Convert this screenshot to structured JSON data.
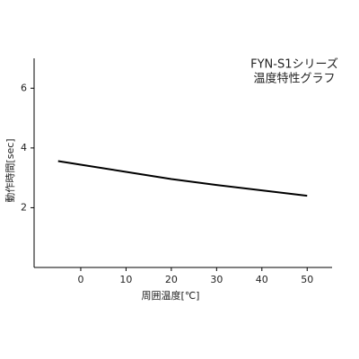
{
  "chart_data": {
    "type": "line",
    "title": "FYN-S1シリーズ",
    "subtitle": "温度特性グラフ",
    "x_label": "周囲温度[℃]",
    "y_label": "動作時間[sec]",
    "x": [
      -5,
      0,
      10,
      20,
      30,
      40,
      50
    ],
    "series": [
      {
        "color": "#000000",
        "values": [
          3.56,
          3.44,
          3.2,
          2.96,
          2.76,
          2.58,
          2.4
        ]
      }
    ],
    "xlim": [
      -10.3,
      55.5
    ],
    "xticks": [
      0,
      10,
      20,
      30,
      40,
      50
    ],
    "ylim": [
      0,
      7
    ],
    "yticks": [
      2,
      4,
      6
    ]
  }
}
